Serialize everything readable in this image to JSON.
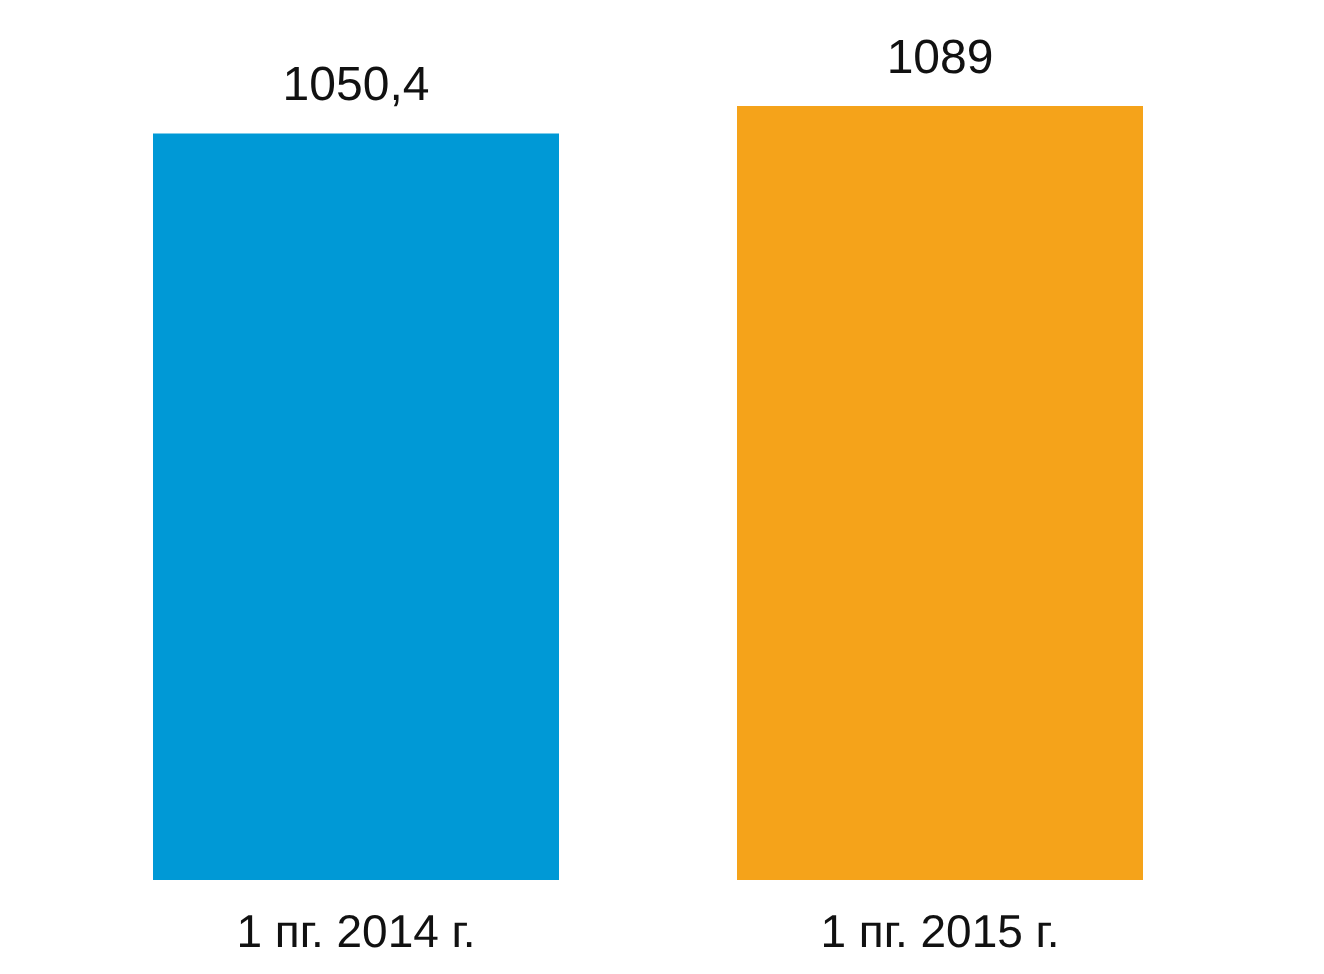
{
  "chart_data": {
    "type": "bar",
    "categories": [
      "1 пг. 2014 г.",
      "1 пг. 2015 г."
    ],
    "values": [
      1050.4,
      1089
    ],
    "colors": [
      "#0099d6",
      "#f5a31a"
    ],
    "value_labels": [
      "1050,4",
      "1089"
    ]
  }
}
